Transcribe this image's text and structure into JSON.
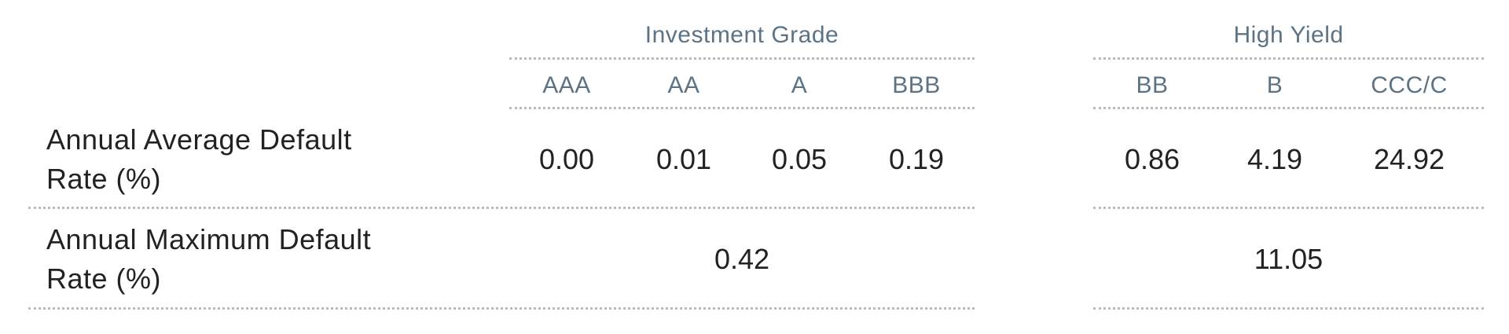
{
  "groups": [
    {
      "title": "Investment Grade",
      "columns": [
        "AAA",
        "AA",
        "A",
        "BBB"
      ]
    },
    {
      "title": "High Yield",
      "columns": [
        "BB",
        "B",
        "CCC/C"
      ]
    }
  ],
  "rows": [
    {
      "label": "Annual Average Default Rate (%)",
      "values": [
        [
          "0.00",
          "0.01",
          "0.05",
          "0.19"
        ],
        [
          "0.86",
          "4.19",
          "24.92"
        ]
      ]
    },
    {
      "label": "Annual Maximum Default Rate (%)",
      "values": [
        [
          "0.42"
        ],
        [
          "11.05"
        ]
      ]
    }
  ]
}
